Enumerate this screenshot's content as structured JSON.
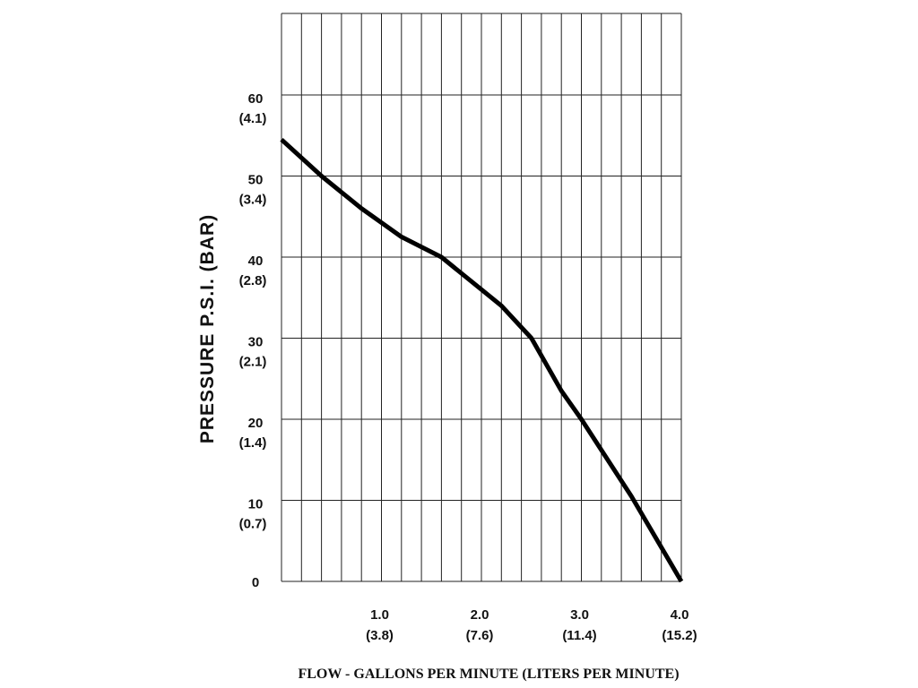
{
  "chart_data": {
    "type": "line",
    "title": "",
    "xlabel": "FLOW - GALLONS PER MINUTE  (LITERS PER MINUTE)",
    "ylabel": "PRESSURE  P.S.I.   (BAR)",
    "xlim": [
      0,
      4.0
    ],
    "ylim": [
      0,
      70
    ],
    "grid": true,
    "x_ticks": [
      {
        "value": 1.0,
        "label": "1.0",
        "sublabel": "(3.8)"
      },
      {
        "value": 2.0,
        "label": "2.0",
        "sublabel": "(7.6)"
      },
      {
        "value": 3.0,
        "label": "3.0",
        "sublabel": "(11.4)"
      },
      {
        "value": 4.0,
        "label": "4.0",
        "sublabel": "(15.2)"
      }
    ],
    "y_ticks": [
      {
        "value": 0,
        "label": "0",
        "sublabel": ""
      },
      {
        "value": 10,
        "label": "10",
        "sublabel": "(0.7)"
      },
      {
        "value": 20,
        "label": "20",
        "sublabel": "(1.4)"
      },
      {
        "value": 30,
        "label": "30",
        "sublabel": "(2.1)"
      },
      {
        "value": 40,
        "label": "40",
        "sublabel": "(2.8)"
      },
      {
        "value": 50,
        "label": "50",
        "sublabel": "(3.4)"
      },
      {
        "value": 60,
        "label": "60",
        "sublabel": "(4.1)"
      }
    ],
    "x_minor_step": 0.2,
    "y_minor_step": 10,
    "series": [
      {
        "color": "#000000",
        "x": [
          0.0,
          0.4,
          0.8,
          1.2,
          1.6,
          2.0,
          2.2,
          2.5,
          2.8,
          3.0,
          3.5,
          4.0
        ],
        "y": [
          54.5,
          50.0,
          46.0,
          42.5,
          40.0,
          36.0,
          34.0,
          30.0,
          23.5,
          20.0,
          10.5,
          0.0
        ]
      }
    ]
  }
}
